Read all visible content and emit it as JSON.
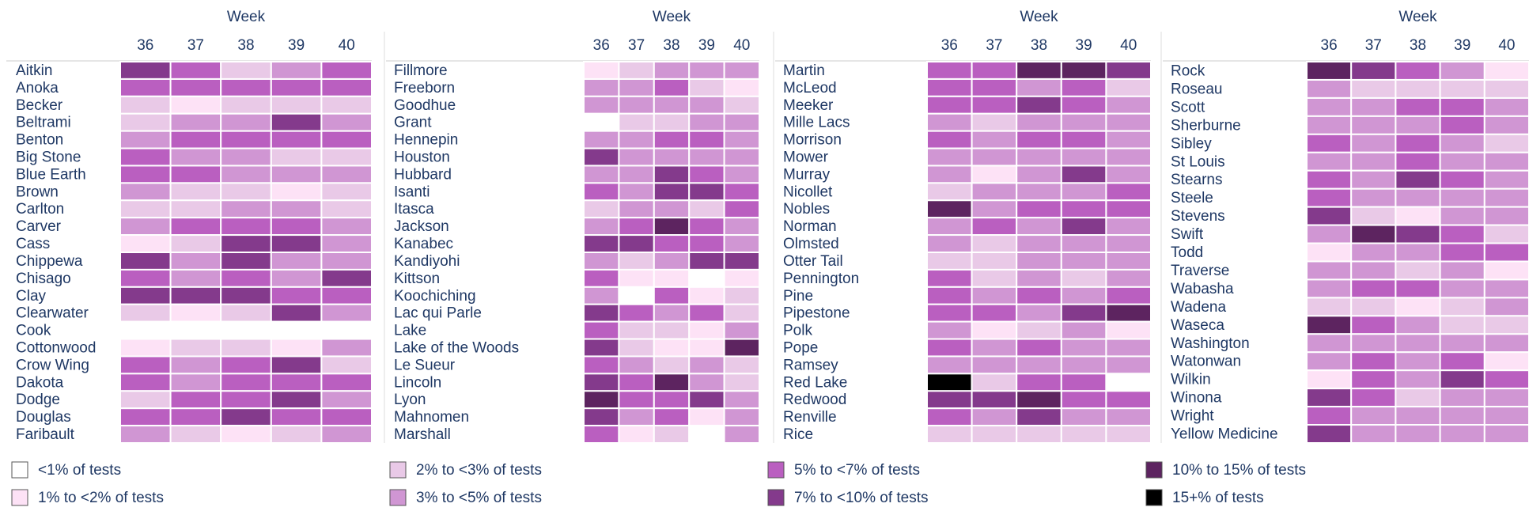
{
  "chart_data": [
    {
      "type": "heatmap",
      "x_label": "Week",
      "columns": [
        36,
        37,
        38,
        39,
        40
      ],
      "rows": [
        "Aitkin",
        "Anoka",
        "Becker",
        "Beltrami",
        "Benton",
        "Big Stone",
        "Blue Earth",
        "Brown",
        "Carlton",
        "Carver",
        "Cass",
        "Chippewa",
        "Chisago",
        "Clay",
        "Clearwater",
        "Cook",
        "Cottonwood",
        "Crow Wing",
        "Dakota",
        "Dodge",
        "Douglas",
        "Faribault"
      ],
      "values": [
        [
          5,
          4,
          2,
          3,
          4
        ],
        [
          4,
          4,
          4,
          4,
          4
        ],
        [
          2,
          1,
          2,
          2,
          2
        ],
        [
          2,
          3,
          3,
          5,
          3
        ],
        [
          3,
          4,
          4,
          4,
          4
        ],
        [
          4,
          3,
          3,
          2,
          2
        ],
        [
          4,
          4,
          3,
          3,
          3
        ],
        [
          3,
          2,
          2,
          1,
          2
        ],
        [
          2,
          2,
          3,
          3,
          2
        ],
        [
          3,
          4,
          4,
          4,
          3
        ],
        [
          1,
          2,
          5,
          5,
          3
        ],
        [
          5,
          3,
          5,
          3,
          3
        ],
        [
          4,
          3,
          4,
          3,
          5
        ],
        [
          5,
          5,
          5,
          4,
          4
        ],
        [
          2,
          1,
          2,
          5,
          3
        ],
        [
          0,
          0,
          0,
          0,
          0
        ],
        [
          1,
          2,
          2,
          1,
          3
        ],
        [
          4,
          3,
          4,
          5,
          2
        ],
        [
          4,
          3,
          4,
          4,
          4
        ],
        [
          2,
          4,
          4,
          5,
          3
        ],
        [
          4,
          4,
          5,
          4,
          4
        ],
        [
          3,
          2,
          1,
          2,
          3
        ]
      ]
    },
    {
      "type": "heatmap",
      "x_label": "Week",
      "columns": [
        36,
        37,
        38,
        39,
        40
      ],
      "rows": [
        "Fillmore",
        "Freeborn",
        "Goodhue",
        "Grant",
        "Hennepin",
        "Houston",
        "Hubbard",
        "Isanti",
        "Itasca",
        "Jackson",
        "Kanabec",
        "Kandiyohi",
        "Kittson",
        "Koochiching",
        "Lac qui Parle",
        "Lake",
        "Lake of the Woods",
        "Le Sueur",
        "Lincoln",
        "Lyon",
        "Mahnomen",
        "Marshall"
      ],
      "values": [
        [
          1,
          2,
          3,
          3,
          3
        ],
        [
          3,
          3,
          4,
          2,
          1
        ],
        [
          3,
          3,
          3,
          3,
          2
        ],
        [
          0,
          2,
          2,
          3,
          3
        ],
        [
          3,
          3,
          4,
          4,
          3
        ],
        [
          5,
          3,
          3,
          3,
          3
        ],
        [
          3,
          3,
          5,
          4,
          3
        ],
        [
          4,
          3,
          5,
          5,
          4
        ],
        [
          2,
          3,
          3,
          2,
          4
        ],
        [
          3,
          4,
          6,
          4,
          3
        ],
        [
          5,
          5,
          4,
          4,
          3
        ],
        [
          3,
          2,
          3,
          5,
          5
        ],
        [
          4,
          1,
          1,
          0,
          1
        ],
        [
          3,
          0,
          4,
          1,
          2
        ],
        [
          5,
          4,
          3,
          4,
          2
        ],
        [
          4,
          2,
          2,
          1,
          3
        ],
        [
          5,
          2,
          1,
          1,
          6
        ],
        [
          4,
          3,
          2,
          3,
          2
        ],
        [
          5,
          4,
          6,
          3,
          2
        ],
        [
          6,
          4,
          4,
          5,
          3
        ],
        [
          5,
          3,
          4,
          1,
          3
        ],
        [
          4,
          1,
          2,
          0,
          3
        ]
      ]
    },
    {
      "type": "heatmap",
      "x_label": "Week",
      "columns": [
        36,
        37,
        38,
        39,
        40
      ],
      "rows": [
        "Martin",
        "McLeod",
        "Meeker",
        "Mille Lacs",
        "Morrison",
        "Mower",
        "Murray",
        "Nicollet",
        "Nobles",
        "Norman",
        "Olmsted",
        "Otter Tail",
        "Pennington",
        "Pine",
        "Pipestone",
        "Polk",
        "Pope",
        "Ramsey",
        "Red Lake",
        "Redwood",
        "Renville",
        "Rice"
      ],
      "values": [
        [
          4,
          4,
          6,
          6,
          5
        ],
        [
          4,
          4,
          3,
          4,
          2
        ],
        [
          4,
          4,
          5,
          4,
          3
        ],
        [
          3,
          2,
          3,
          3,
          3
        ],
        [
          4,
          3,
          4,
          4,
          3
        ],
        [
          3,
          3,
          3,
          3,
          3
        ],
        [
          3,
          1,
          3,
          5,
          3
        ],
        [
          2,
          3,
          3,
          3,
          4
        ],
        [
          6,
          3,
          4,
          4,
          4
        ],
        [
          3,
          4,
          3,
          5,
          3
        ],
        [
          3,
          2,
          3,
          3,
          3
        ],
        [
          2,
          2,
          3,
          3,
          3
        ],
        [
          4,
          2,
          3,
          2,
          3
        ],
        [
          4,
          3,
          4,
          3,
          4
        ],
        [
          4,
          4,
          3,
          5,
          6
        ],
        [
          3,
          1,
          2,
          3,
          1
        ],
        [
          4,
          3,
          4,
          3,
          3
        ],
        [
          3,
          3,
          3,
          3,
          3
        ],
        [
          7,
          2,
          4,
          4,
          0
        ],
        [
          5,
          5,
          6,
          4,
          4
        ],
        [
          4,
          3,
          5,
          3,
          3
        ],
        [
          2,
          2,
          2,
          2,
          2
        ]
      ]
    },
    {
      "type": "heatmap",
      "x_label": "Week",
      "columns": [
        36,
        37,
        38,
        39,
        40
      ],
      "rows": [
        "Rock",
        "Roseau",
        "Scott",
        "Sherburne",
        "Sibley",
        "St Louis",
        "Stearns",
        "Steele",
        "Stevens",
        "Swift",
        "Todd",
        "Traverse",
        "Wabasha",
        "Wadena",
        "Waseca",
        "Washington",
        "Watonwan",
        "Wilkin",
        "Winona",
        "Wright",
        "Yellow Medicine"
      ],
      "values": [
        [
          6,
          5,
          4,
          3,
          1
        ],
        [
          3,
          2,
          2,
          2,
          2
        ],
        [
          3,
          3,
          4,
          4,
          3
        ],
        [
          3,
          3,
          3,
          4,
          3
        ],
        [
          4,
          3,
          4,
          3,
          2
        ],
        [
          3,
          3,
          4,
          3,
          3
        ],
        [
          4,
          3,
          5,
          4,
          3
        ],
        [
          4,
          3,
          3,
          3,
          3
        ],
        [
          5,
          2,
          1,
          3,
          3
        ],
        [
          3,
          6,
          5,
          4,
          2
        ],
        [
          1,
          3,
          3,
          4,
          4
        ],
        [
          3,
          3,
          2,
          3,
          1
        ],
        [
          3,
          4,
          4,
          3,
          3
        ],
        [
          2,
          2,
          1,
          2,
          3
        ],
        [
          6,
          4,
          3,
          2,
          2
        ],
        [
          3,
          3,
          3,
          3,
          3
        ],
        [
          3,
          4,
          3,
          4,
          1
        ],
        [
          1,
          4,
          3,
          5,
          4
        ],
        [
          5,
          4,
          2,
          3,
          3
        ],
        [
          4,
          3,
          3,
          3,
          3
        ],
        [
          5,
          3,
          3,
          3,
          3
        ]
      ]
    }
  ],
  "legend": [
    {
      "label": "<1% of tests",
      "color": "#ffffff"
    },
    {
      "label": "1% to <2% of tests",
      "color": "#fde2f6"
    },
    {
      "label": "2% to <3% of tests",
      "color": "#e9c9e7"
    },
    {
      "label": "3% to <5% of tests",
      "color": "#d096d3"
    },
    {
      "label": "5% to <7% of tests",
      "color": "#ba5fc0"
    },
    {
      "label": "7% to <10% of tests",
      "color": "#843a8c"
    },
    {
      "label": "10% to 15% of tests",
      "color": "#5d2460"
    },
    {
      "label": "15+% of tests",
      "color": "#000000"
    }
  ]
}
